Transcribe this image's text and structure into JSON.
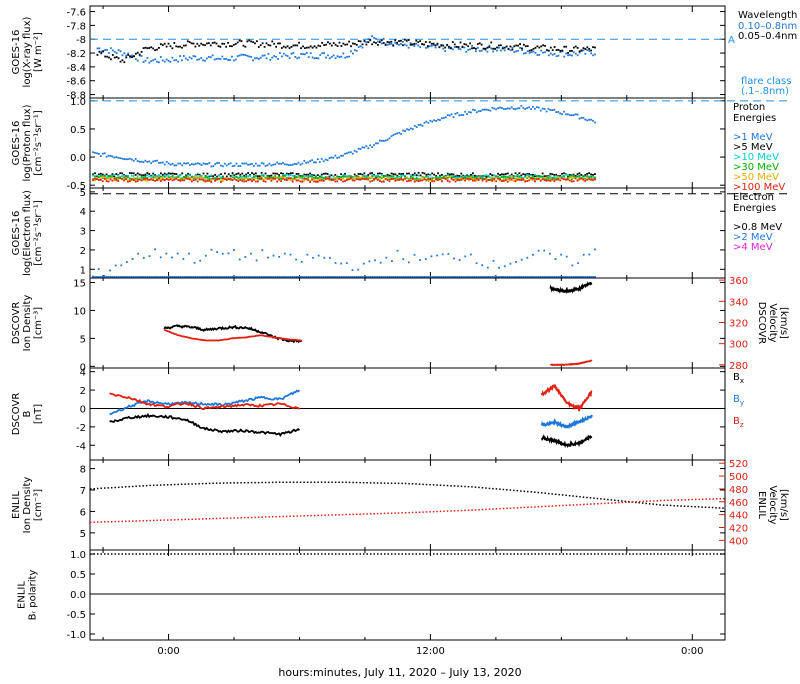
{
  "x_axis": {
    "label": "hours:minutes, July 11, 2020 – July 13, 2020",
    "ticks": [
      {
        "t": 0,
        "label": "0:00"
      },
      {
        "t": 12,
        "label": "12:00"
      },
      {
        "t": 24,
        "label": "0:00"
      }
    ],
    "range_hours": [
      -3.6,
      25.5
    ]
  },
  "chart_data": [
    {
      "type": "scatter",
      "panel": "xray",
      "ylabel": [
        "GOES-16",
        "log(X-ray flux)",
        "[W m⁻²]"
      ],
      "yticks": [
        -7.6,
        -7.8,
        -8.0,
        -8.2,
        -8.4,
        -8.6,
        -8.8
      ],
      "ylim": [
        -8.85,
        -7.52
      ],
      "legend_title": "Wavelength",
      "legend": [
        {
          "name": "0.10–0.8nm",
          "color": "#1e78dc"
        },
        {
          "name": "0.05–0.4nm",
          "color": "#000000"
        }
      ],
      "reference_line": {
        "y": -8.0,
        "label": "A",
        "color": "#1e90e0",
        "dashed": true
      },
      "note_lines": [
        "flare class",
        "(.1–.8nm)"
      ],
      "series": [
        {
          "color": "#1e78dc",
          "t_range": [
            -3.3,
            19.5
          ],
          "values": [
            -8.12,
            -8.18,
            -8.3,
            -8.28,
            -8.25,
            -8.27,
            -8.25,
            -8.24,
            -8.22,
            -8.22,
            -8.22,
            -7.98,
            -8.05,
            -8.1,
            -8.12,
            -8.13,
            -8.12,
            -8.15,
            -8.18,
            -8.2,
            -8.18
          ]
        },
        {
          "color": "#000000",
          "t_range": [
            -3.3,
            19.5
          ],
          "values": [
            -8.18,
            -8.3,
            -8.12,
            -8.08,
            -8.05,
            -8.05,
            -8.05,
            -8.06,
            -8.08,
            -8.07,
            -8.06,
            -8.02,
            -8.03,
            -8.05,
            -8.07,
            -8.08,
            -8.08,
            -8.1,
            -8.12,
            -8.14,
            -8.13
          ]
        }
      ]
    },
    {
      "type": "scatter",
      "panel": "proton",
      "ylabel": [
        "GOES-16",
        "log(Proton flux)",
        "[cm⁻²s⁻¹sr⁻¹]"
      ],
      "yticks": [
        1.0,
        0.5,
        0.0,
        -0.5
      ],
      "ylim": [
        -0.55,
        1.05
      ],
      "legend_title": [
        "Proton",
        "Energies"
      ],
      "legend": [
        {
          "name": ">1 MeV",
          "color": "#1e78dc"
        },
        {
          "name": ">5 MeV",
          "color": "#000000"
        },
        {
          "name": ">10 MeV",
          "color": "#00d0d0"
        },
        {
          "name": ">30 MeV",
          "color": "#00b000"
        },
        {
          "name": ">50 MeV",
          "color": "#e0b000"
        },
        {
          "name": ">100 MeV",
          "color": "#e02010"
        }
      ],
      "reference_line": {
        "y": 1.0,
        "color": "#1e90e0",
        "dashed": true
      },
      "series": [
        {
          "color": "#1e78dc",
          "t_range": [
            -3.5,
            19.5
          ],
          "values": [
            0.08,
            0.02,
            -0.05,
            -0.1,
            -0.12,
            -0.12,
            -0.12,
            -0.11,
            -0.1,
            -0.05,
            0.05,
            0.2,
            0.4,
            0.58,
            0.72,
            0.82,
            0.88,
            0.9,
            0.86,
            0.78,
            0.65
          ]
        },
        {
          "color": "#000000",
          "t_range": [
            -3.5,
            19.5
          ],
          "values": [
            -0.3,
            -0.3,
            -0.29,
            -0.3,
            -0.31,
            -0.3,
            -0.3,
            -0.29,
            -0.3,
            -0.3,
            -0.31,
            -0.3,
            -0.3,
            -0.29,
            -0.3,
            -0.3,
            -0.31,
            -0.3,
            -0.3,
            -0.3,
            -0.3
          ]
        },
        {
          "color": "#00d0d0",
          "t_range": [
            -3.5,
            19.5
          ],
          "values": [
            -0.33,
            -0.33,
            -0.34,
            -0.33,
            -0.33,
            -0.34,
            -0.33,
            -0.33,
            -0.33,
            -0.34,
            -0.33,
            -0.33,
            -0.33,
            -0.34,
            -0.33,
            -0.33,
            -0.34,
            -0.33,
            -0.33,
            -0.33,
            -0.33
          ]
        },
        {
          "color": "#00b000",
          "t_range": [
            -3.5,
            19.5
          ],
          "values": [
            -0.35,
            -0.35,
            -0.36,
            -0.35,
            -0.35,
            -0.36,
            -0.35,
            -0.35,
            -0.35,
            -0.36,
            -0.35,
            -0.35,
            -0.35,
            -0.36,
            -0.35,
            -0.35,
            -0.36,
            -0.35,
            -0.35,
            -0.35,
            -0.35
          ]
        },
        {
          "color": "#e0b000",
          "t_range": [
            -3.5,
            19.5
          ],
          "values": [
            -0.37,
            -0.37,
            -0.38,
            -0.37,
            -0.37,
            -0.38,
            -0.37,
            -0.37,
            -0.37,
            -0.38,
            -0.37,
            -0.37,
            -0.37,
            -0.38,
            -0.37,
            -0.37,
            -0.38,
            -0.37,
            -0.37,
            -0.37,
            -0.37
          ]
        },
        {
          "color": "#e02010",
          "t_range": [
            -3.5,
            19.5
          ],
          "values": [
            -0.39,
            -0.39,
            -0.4,
            -0.39,
            -0.39,
            -0.4,
            -0.39,
            -0.39,
            -0.39,
            -0.4,
            -0.39,
            -0.39,
            -0.39,
            -0.4,
            -0.39,
            -0.39,
            -0.4,
            -0.39,
            -0.39,
            -0.39,
            -0.39
          ]
        }
      ]
    },
    {
      "type": "scatter",
      "panel": "electron",
      "ylabel": [
        "GOES-16",
        "log(Electron flux)",
        "[cm⁻²s⁻¹sr⁻¹]"
      ],
      "yticks": [
        5,
        4,
        3,
        2,
        1
      ],
      "ylim": [
        0.55,
        5.2
      ],
      "legend_title": [
        "Electron",
        "Energies"
      ],
      "legend": [
        {
          "name": ">0.8 MeV",
          "color": "#000000"
        },
        {
          "name": ">2 MeV",
          "color": "#1e78dc"
        },
        {
          "name": ">4 MeV",
          "color": "#e020e0"
        }
      ],
      "reference_line": {
        "y": 4.9,
        "color": "#000000",
        "dashed": true
      },
      "series": [
        {
          "color": "#1e78dc",
          "t_range": [
            -3.5,
            19.5
          ],
          "values": [
            0.65,
            1.3,
            1.8,
            1.9,
            1.6,
            1.9,
            1.7,
            1.8,
            1.5,
            1.7,
            1.3,
            1.2,
            1.8,
            1.5,
            1.7,
            1.8,
            1.2,
            1.6,
            1.8,
            1.4,
            1.9
          ]
        },
        {
          "color": "#1e78dc",
          "t_range": [
            -3.5,
            19.5
          ],
          "values": [
            0.65,
            0.65,
            0.65,
            0.65,
            0.65,
            0.65,
            0.65,
            0.65,
            0.65,
            0.65,
            0.65,
            0.65,
            0.65,
            0.65,
            0.65,
            0.65,
            0.65,
            0.65,
            0.65,
            0.65,
            0.65
          ]
        }
      ]
    },
    {
      "type": "line",
      "panel": "dscovr_density",
      "ylabel": [
        "DSCOVR",
        "Ion Density",
        "[cm⁻³]"
      ],
      "ylabel_right": [
        "DSCOVR",
        "Velocity",
        "[km/s]"
      ],
      "yticks": [
        15,
        10,
        5,
        0
      ],
      "ylim": [
        -0.3,
        15.8
      ],
      "right_yticks": [
        360,
        340,
        320,
        300,
        280
      ],
      "right_ylim": [
        277,
        362
      ],
      "series": [
        {
          "name": "density",
          "color": "#000000",
          "t_range": [
            -0.2,
            6.1
          ],
          "values": [
            6.8,
            7.2,
            7.0,
            6.5,
            6.8,
            7.0,
            6.9,
            6.2,
            5.2,
            4.6,
            4.5
          ]
        },
        {
          "name": "velocity",
          "color": "#e02010",
          "axis": "right",
          "t_range": [
            -0.2,
            6.1
          ],
          "values": [
            313,
            308,
            305,
            303,
            303,
            305,
            306,
            308,
            306,
            304,
            303
          ]
        },
        {
          "name": "density",
          "color": "#000000",
          "t_range": [
            17.5,
            19.4
          ],
          "values": [
            14.0,
            13.4,
            13.8,
            15.0
          ]
        },
        {
          "name": "velocity",
          "color": "#e02010",
          "axis": "right",
          "t_range": [
            17.5,
            19.4
          ],
          "values": [
            280,
            280,
            281,
            284
          ]
        }
      ]
    },
    {
      "type": "line",
      "panel": "dscovr_b",
      "ylabel": [
        "DSCOVR",
        "B",
        "[nT]"
      ],
      "yticks": [
        4,
        2,
        0,
        -2,
        -4
      ],
      "ylim": [
        -5.6,
        4.4
      ],
      "legend": [
        {
          "name": "B",
          "sub": "x",
          "color": "#000000"
        },
        {
          "name": "B",
          "sub": "y",
          "color": "#1e78dc"
        },
        {
          "name": "B",
          "sub": "z",
          "color": "#e02010"
        }
      ],
      "series": [
        {
          "name": "Bx",
          "color": "#000000",
          "t_range": [
            -2.7,
            6.0
          ],
          "values": [
            -1.5,
            -1.0,
            -0.8,
            -0.9,
            -1.2,
            -2.2,
            -2.5,
            -2.4,
            -2.6,
            -2.8,
            -2.3
          ]
        },
        {
          "name": "By",
          "color": "#1e78dc",
          "t_range": [
            -2.7,
            6.0
          ],
          "values": [
            -0.6,
            0.2,
            0.8,
            0.5,
            0.6,
            0.5,
            0.4,
            0.8,
            1.2,
            1.0,
            2.0
          ]
        },
        {
          "name": "Bz",
          "color": "#e02010",
          "t_range": [
            -2.7,
            6.0
          ],
          "values": [
            1.6,
            1.2,
            0.5,
            0.2,
            0.6,
            0.0,
            0.2,
            0.4,
            0.3,
            0.5,
            0.0
          ]
        },
        {
          "name": "Bx",
          "color": "#000000",
          "t_range": [
            17.1,
            19.4
          ],
          "values": [
            -3.2,
            -3.5,
            -4.0,
            -3.8,
            -3.0
          ]
        },
        {
          "name": "By",
          "color": "#1e78dc",
          "t_range": [
            17.1,
            19.4
          ],
          "values": [
            -1.8,
            -1.5,
            -2.0,
            -1.4,
            -0.8
          ]
        },
        {
          "name": "Bz",
          "color": "#e02010",
          "t_range": [
            17.1,
            19.4
          ],
          "values": [
            1.5,
            2.5,
            0.6,
            0.0,
            1.8
          ]
        }
      ]
    },
    {
      "type": "line",
      "panel": "enlil_density",
      "ylabel": [
        "ENLIL",
        "Ion Density",
        "[cm⁻³]"
      ],
      "ylabel_right": [
        "ENLIL",
        "Velocity",
        "[km/s]"
      ],
      "yticks": [
        8,
        7,
        6,
        5
      ],
      "ylim": [
        4.2,
        8.4
      ],
      "right_yticks": [
        520,
        500,
        480,
        460,
        440,
        420,
        400
      ],
      "right_ylim": [
        385,
        525
      ],
      "series": [
        {
          "name": "density",
          "color": "#000000",
          "t_range": [
            -3.6,
            25.5
          ],
          "values": [
            7.05,
            7.22,
            7.32,
            7.36,
            7.36,
            7.3,
            7.15,
            6.9,
            6.6,
            6.3,
            6.15
          ]
        },
        {
          "name": "velocity",
          "color": "#e02010",
          "axis": "right",
          "t_range": [
            -3.6,
            25.5
          ],
          "values": [
            428,
            431,
            434,
            437,
            440,
            443,
            447,
            452,
            457,
            462,
            465
          ]
        }
      ]
    },
    {
      "type": "line",
      "panel": "enlil_polarity",
      "ylabel": [
        "ENLIL",
        "Bᵣ polarity"
      ],
      "yticks": [
        1.0,
        0.5,
        0.0,
        -0.5,
        -1.0
      ],
      "ylim": [
        -1.15,
        1.1
      ],
      "series": [
        {
          "name": "polarity",
          "color": "#000000",
          "t_range": [
            -3.6,
            25.5
          ],
          "values": [
            1.0,
            1.0
          ]
        }
      ]
    }
  ]
}
